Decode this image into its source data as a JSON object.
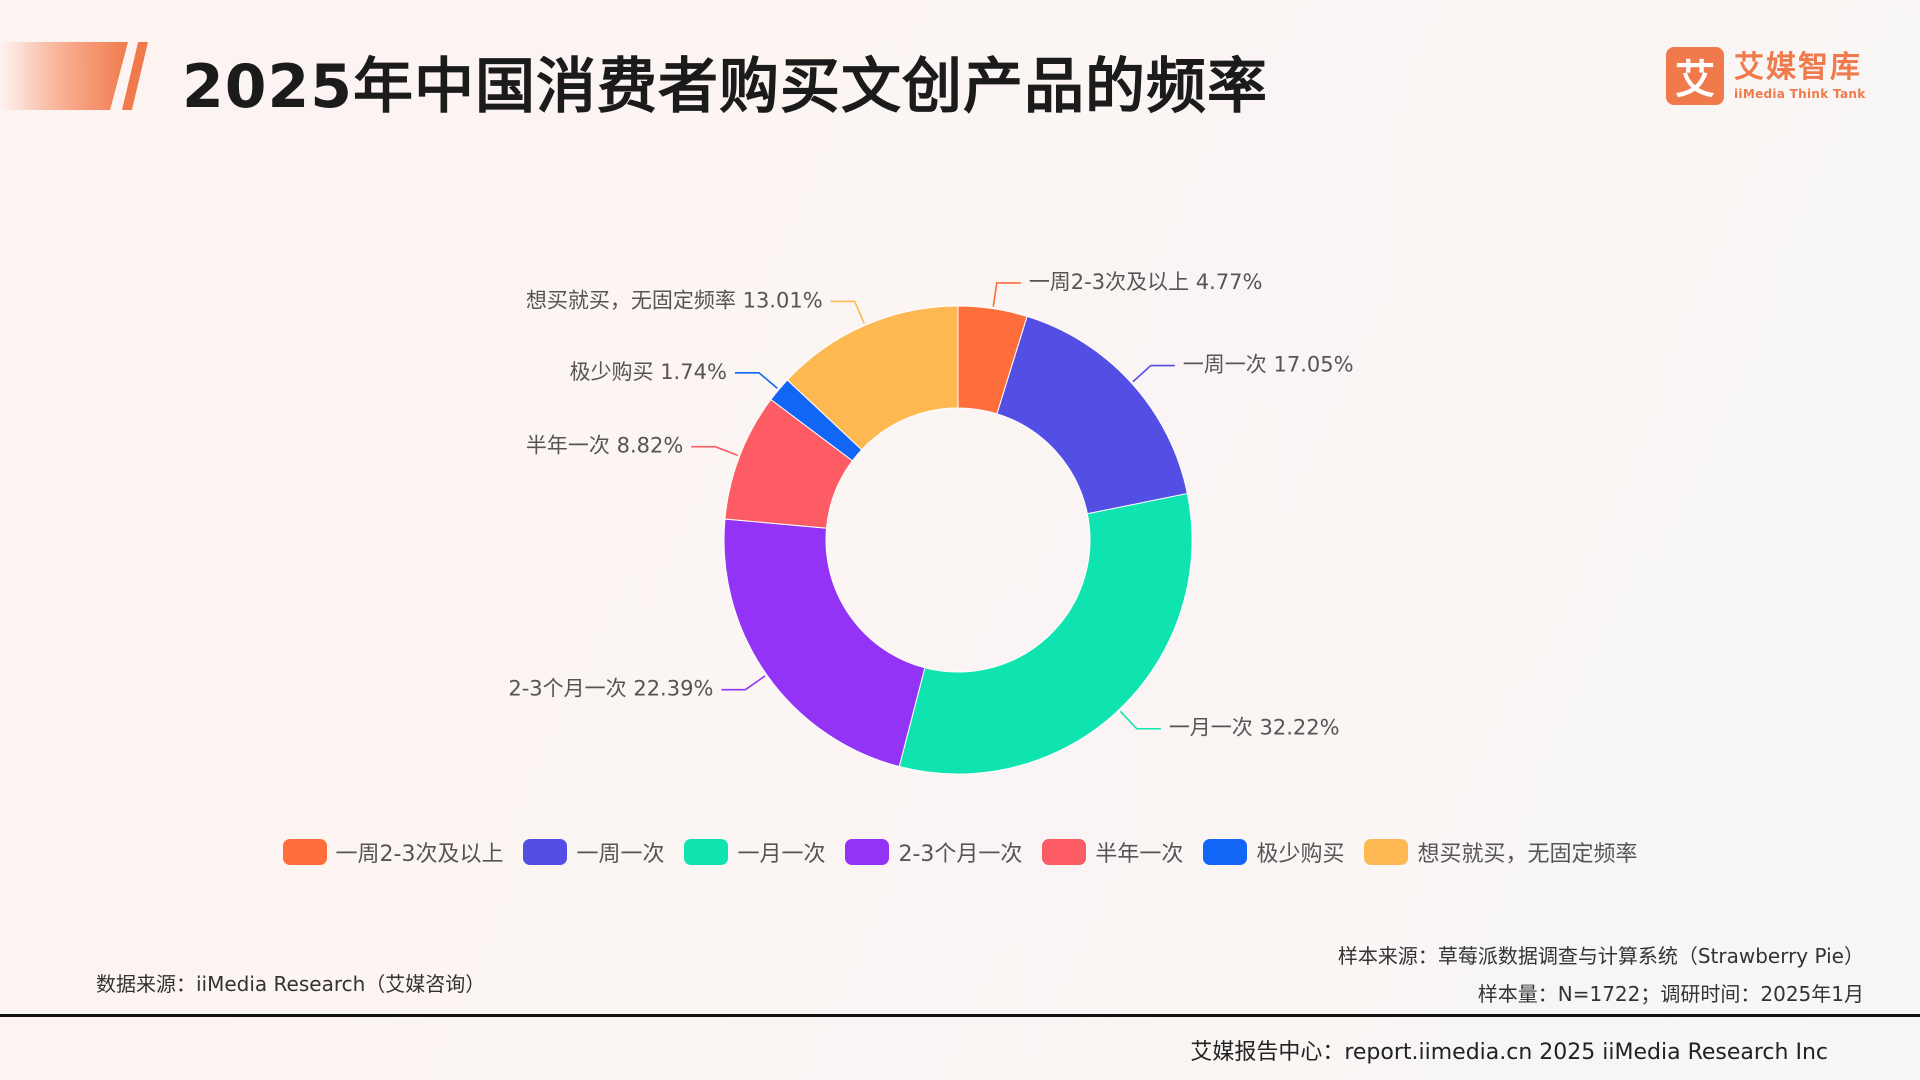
{
  "header": {
    "title": "2025年中国消费者购买文创产品的频率"
  },
  "logo": {
    "mark": "艾",
    "name_cn": "艾媒智库",
    "name_en": "iiMedia Think Tank",
    "color": "#f07a4c"
  },
  "chart_data": {
    "type": "pie",
    "donut": true,
    "title": "",
    "legend_position": "bottom",
    "unit": "%",
    "slices": [
      {
        "label": "一周2-3次及以上",
        "value": 4.77,
        "display": "一周2-3次及以上 4.77%",
        "color": "#fd6e3b"
      },
      {
        "label": "一周一次",
        "value": 17.05,
        "display": "一周一次 17.05%",
        "color": "#534fe4"
      },
      {
        "label": "一月一次",
        "value": 32.22,
        "display": "一月一次 32.22%",
        "color": "#0fe3b0"
      },
      {
        "label": "2-3个月一次",
        "value": 22.39,
        "display": "2-3个月一次 22.39%",
        "color": "#9233f6"
      },
      {
        "label": "半年一次",
        "value": 8.82,
        "display": "半年一次 8.82%",
        "color": "#fd5c64"
      },
      {
        "label": "极少购买",
        "value": 1.74,
        "display": "极少购买 1.74%",
        "color": "#1166f6"
      },
      {
        "label": "想买就买，无固定频率",
        "value": 13.01,
        "display": "想买就买，无固定频率 13.01%",
        "color": "#fdb852"
      }
    ]
  },
  "sources": {
    "data_source": "数据来源：iiMedia Research（艾媒咨询）",
    "sample_source": "样本来源：草莓派数据调查与计算系统（Strawberry Pie）",
    "sample_info": "样本量：N=1722；调研时间：2025年1月"
  },
  "footer": {
    "text": "艾媒报告中心：report.iimedia.cn 2025 iiMedia Research Inc"
  }
}
